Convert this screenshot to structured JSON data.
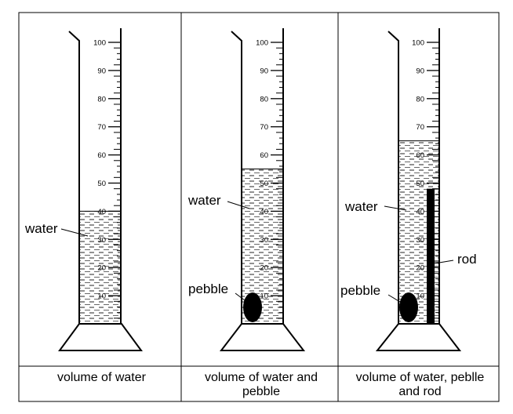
{
  "scale": {
    "max": 100,
    "labeled_ticks": [
      10,
      20,
      30,
      40,
      50,
      60,
      70,
      80,
      90,
      100
    ]
  },
  "panels": [
    {
      "id": "panel-1",
      "water_level": 40,
      "callouts": {
        "water": "water"
      },
      "caption_lines": [
        "volume of water"
      ],
      "has_pebble": false,
      "has_rod": false
    },
    {
      "id": "panel-2",
      "water_level": 55,
      "callouts": {
        "water": "water",
        "pebble": "pebble"
      },
      "caption_lines": [
        "volume of water and",
        "pebble"
      ],
      "has_pebble": true,
      "has_rod": false
    },
    {
      "id": "panel-3",
      "water_level": 65,
      "callouts": {
        "water": "water",
        "pebble": "pebble",
        "rod": "rod"
      },
      "caption_lines": [
        "volume of water, peblle",
        "and rod"
      ],
      "has_pebble": true,
      "has_rod": true,
      "rod_top": 48
    }
  ],
  "colors": {
    "line": "#000000",
    "water_hatch": "#555555",
    "object": "#000000"
  }
}
